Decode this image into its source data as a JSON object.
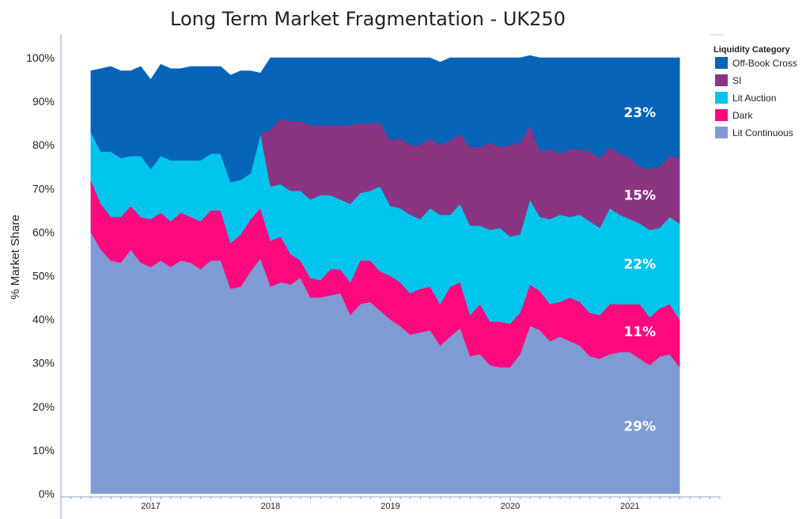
{
  "chart_data": {
    "type": "area",
    "stacked": true,
    "title": "Long Term Market Fragmentation - UK250",
    "xlabel": "",
    "ylabel": "% Market Share",
    "ylim": [
      0,
      100
    ],
    "y_ticks": [
      "0%",
      "10%",
      "20%",
      "30%",
      "40%",
      "50%",
      "60%",
      "70%",
      "80%",
      "90%",
      "100%"
    ],
    "x_ticks": [
      "2017",
      "2018",
      "2019",
      "2020",
      "2021"
    ],
    "x_tick_years": [
      2017,
      2018,
      2019,
      2020,
      2021
    ],
    "x_range": [
      2016.25,
      2021.75
    ],
    "x_start": 2016.5,
    "x_step": 0.0833,
    "legend": {
      "title": "Liquidity Category",
      "position": "top-right",
      "entries": [
        {
          "name": "Off-Book Cross",
          "color": "#0563b8"
        },
        {
          "name": "SI",
          "color": "#8b3482"
        },
        {
          "name": "Lit Auction",
          "color": "#00c4ec"
        },
        {
          "name": "Dark",
          "color": "#ff0a7e"
        },
        {
          "name": "Lit Continuous",
          "color": "#7f9bd4"
        }
      ]
    },
    "series": [
      {
        "name": "Lit Continuous",
        "color": "#7f9bd4",
        "values": [
          60,
          56,
          53.5,
          53,
          56,
          53,
          52,
          53.5,
          52,
          53.5,
          53,
          51.5,
          53.5,
          53.5,
          47,
          47.5,
          51,
          54,
          47.5,
          48.5,
          48,
          49.5,
          45,
          45,
          45.5,
          46,
          41,
          43.5,
          44,
          42,
          40,
          38.5,
          36.5,
          37,
          37.5,
          34,
          36,
          38,
          31.5,
          32,
          29.5,
          29,
          29,
          32,
          38.5,
          37.5,
          35,
          36,
          35,
          34,
          31.5,
          31,
          32,
          32.5,
          32.5,
          31,
          29.5,
          31.5,
          32,
          29
        ]
      },
      {
        "name": "Dark",
        "color": "#ff0a7e",
        "values": [
          12,
          10.5,
          10,
          10.5,
          10,
          10.5,
          11,
          11,
          10.5,
          11,
          10.5,
          11,
          11.5,
          11.5,
          10.5,
          12,
          12,
          11.5,
          10.5,
          10.5,
          7,
          4,
          4.5,
          4,
          6,
          5.5,
          7.5,
          10,
          9.5,
          9,
          10,
          10,
          9.5,
          10,
          10,
          9.5,
          11.5,
          10.5,
          9.5,
          11.5,
          10,
          10.5,
          10,
          9.5,
          9.5,
          9,
          8.5,
          8,
          10,
          10,
          10,
          10,
          11.5,
          11,
          11,
          12.5,
          11,
          11,
          11.5,
          11
        ]
      },
      {
        "name": "Lit Auction",
        "color": "#00c4ec",
        "values": [
          11,
          12,
          15,
          13.5,
          11.5,
          14,
          11.5,
          13,
          14,
          12,
          13,
          14,
          13,
          13,
          14,
          12.5,
          10.5,
          17,
          12.5,
          12,
          14.5,
          16,
          18,
          19.5,
          17,
          16,
          18,
          15.5,
          16,
          19.5,
          16,
          17,
          18,
          16,
          18,
          20.5,
          16.5,
          18,
          20.5,
          18,
          21,
          21.5,
          20,
          18,
          19.5,
          17,
          19.5,
          20,
          18.5,
          20,
          21,
          20,
          22,
          20.5,
          19.5,
          18.5,
          20,
          18.5,
          20,
          22
        ]
      },
      {
        "name": "SI",
        "color": "#8b3482",
        "values": [
          0,
          0,
          0,
          0,
          0,
          0,
          0,
          0,
          0,
          0,
          0,
          0,
          0,
          0,
          0,
          0,
          0,
          0,
          13,
          15,
          16,
          16,
          17,
          16,
          16,
          17,
          18,
          16,
          15.5,
          14.5,
          15,
          16,
          16,
          17,
          16,
          16,
          17,
          16,
          18,
          18,
          20,
          18.5,
          21,
          21,
          17,
          15,
          16,
          14,
          15.5,
          15,
          16,
          16,
          14,
          14,
          14,
          13,
          14,
          14,
          14,
          15
        ]
      },
      {
        "name": "Off-Book Cross",
        "color": "#0563b8",
        "values": [
          14,
          19,
          19.5,
          20,
          19.5,
          20.5,
          20.5,
          21,
          21,
          21,
          21.5,
          21.5,
          20,
          20,
          24.5,
          25,
          23.5,
          14,
          16.5,
          14,
          14.5,
          14.5,
          15.5,
          15.5,
          15.5,
          15.5,
          15.5,
          15,
          15,
          15,
          19,
          18.5,
          20,
          20,
          18.5,
          19,
          19,
          17.5,
          20.5,
          20.5,
          19.5,
          20.5,
          20,
          19.5,
          16,
          21.5,
          21,
          22,
          21,
          21,
          21.5,
          23,
          20.5,
          22,
          23,
          25,
          25.5,
          25,
          22.5,
          23
        ]
      }
    ],
    "annotations": [
      {
        "text": "29%",
        "series": "Lit Continuous"
      },
      {
        "text": "11%",
        "series": "Dark"
      },
      {
        "text": "22%",
        "series": "Lit Auction"
      },
      {
        "text": "15%",
        "series": "SI"
      },
      {
        "text": "23%",
        "series": "Off-Book Cross"
      }
    ]
  }
}
